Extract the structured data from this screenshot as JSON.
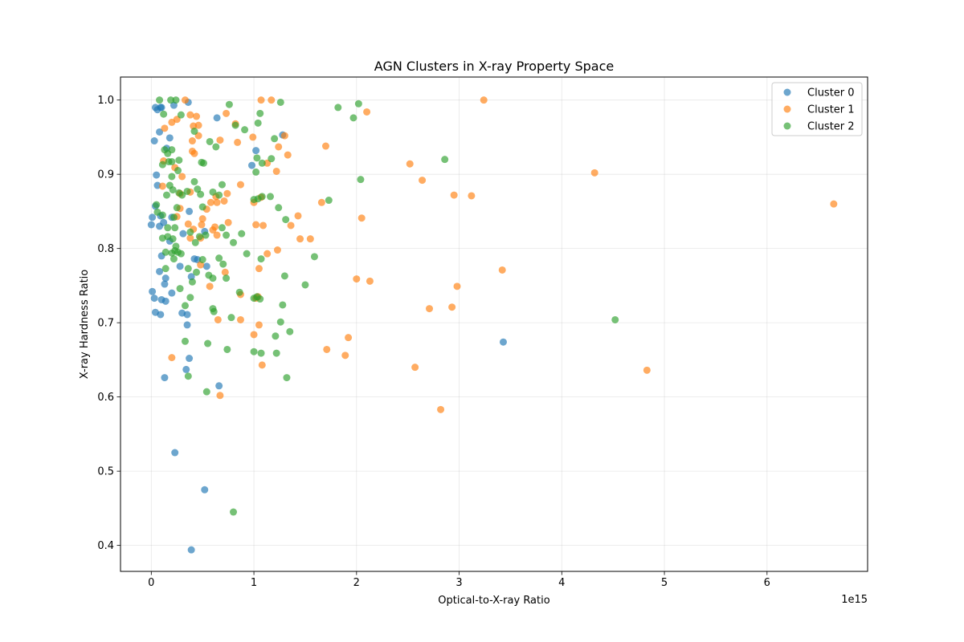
{
  "chart_data": {
    "type": "scatter",
    "title": "AGN Clusters in X-ray Property Space",
    "xlabel": "Optical-to-X-ray Ratio",
    "ylabel": "X-ray Hardness Ratio",
    "x_offset_label": "1e15",
    "x_unit_scale": 1000000000000000.0,
    "xlim": [
      -0.3,
      6.98
    ],
    "ylim": [
      0.365,
      1.031
    ],
    "xticks": [
      0,
      1,
      2,
      3,
      4,
      5,
      6
    ],
    "xtick_labels": [
      "0",
      "1",
      "2",
      "3",
      "4",
      "5",
      "6"
    ],
    "yticks": [
      0.4,
      0.5,
      0.6,
      0.7,
      0.8,
      0.9,
      1.0
    ],
    "ytick_labels": [
      "0.4",
      "0.5",
      "0.6",
      "0.7",
      "0.8",
      "0.9",
      "1.0"
    ],
    "grid": true,
    "legend_position": "upper right",
    "series": [
      {
        "name": "Cluster 0",
        "color": "#1f77b4",
        "points": [
          [
            0.04,
            0.99
          ],
          [
            0.06,
            0.987
          ],
          [
            0.09,
            0.99
          ],
          [
            0.1,
            0.99
          ],
          [
            0.22,
            0.993
          ],
          [
            0.36,
            0.997
          ],
          [
            0.64,
            0.976
          ],
          [
            0.08,
            0.957
          ],
          [
            0.18,
            0.949
          ],
          [
            0.03,
            0.945
          ],
          [
            0.15,
            0.935
          ],
          [
            0.98,
            0.912
          ],
          [
            1.02,
            0.932
          ],
          [
            1.28,
            0.953
          ],
          [
            0.05,
            0.899
          ],
          [
            0.06,
            0.885
          ],
          [
            0.04,
            0.857
          ],
          [
            0.01,
            0.842
          ],
          [
            0.09,
            0.844
          ],
          [
            0.0,
            0.832
          ],
          [
            0.08,
            0.83
          ],
          [
            0.12,
            0.835
          ],
          [
            0.2,
            0.842
          ],
          [
            0.18,
            0.81
          ],
          [
            0.37,
            0.85
          ],
          [
            0.31,
            0.82
          ],
          [
            0.52,
            0.823
          ],
          [
            0.1,
            0.79
          ],
          [
            0.08,
            0.769
          ],
          [
            0.42,
            0.786
          ],
          [
            0.45,
            0.785
          ],
          [
            0.54,
            0.776
          ],
          [
            0.28,
            0.776
          ],
          [
            0.39,
            0.762
          ],
          [
            0.14,
            0.76
          ],
          [
            0.13,
            0.752
          ],
          [
            0.2,
            0.74
          ],
          [
            0.01,
            0.742
          ],
          [
            0.03,
            0.733
          ],
          [
            0.1,
            0.731
          ],
          [
            0.14,
            0.729
          ],
          [
            0.04,
            0.714
          ],
          [
            0.09,
            0.711
          ],
          [
            0.3,
            0.713
          ],
          [
            0.35,
            0.711
          ],
          [
            0.35,
            0.697
          ],
          [
            0.37,
            0.652
          ],
          [
            0.34,
            0.637
          ],
          [
            0.13,
            0.626
          ],
          [
            0.66,
            0.615
          ],
          [
            3.43,
            0.674
          ],
          [
            0.23,
            0.525
          ],
          [
            0.52,
            0.475
          ],
          [
            0.39,
            0.394
          ]
        ]
      },
      {
        "name": "Cluster 1",
        "color": "#ff7f0e",
        "points": [
          [
            0.33,
            1.0
          ],
          [
            1.07,
            1.0
          ],
          [
            1.17,
            1.0
          ],
          [
            3.24,
            1.0
          ],
          [
            0.38,
            0.98
          ],
          [
            0.44,
            0.978
          ],
          [
            0.73,
            0.982
          ],
          [
            2.1,
            0.984
          ],
          [
            0.2,
            0.97
          ],
          [
            0.25,
            0.974
          ],
          [
            0.46,
            0.966
          ],
          [
            0.41,
            0.965
          ],
          [
            0.82,
            0.968
          ],
          [
            0.13,
            0.962
          ],
          [
            0.46,
            0.952
          ],
          [
            0.99,
            0.95
          ],
          [
            1.3,
            0.952
          ],
          [
            0.67,
            0.946
          ],
          [
            0.84,
            0.943
          ],
          [
            0.4,
            0.945
          ],
          [
            1.24,
            0.937
          ],
          [
            1.7,
            0.938
          ],
          [
            0.4,
            0.931
          ],
          [
            0.42,
            0.928
          ],
          [
            1.33,
            0.926
          ],
          [
            1.13,
            0.915
          ],
          [
            2.52,
            0.914
          ],
          [
            0.12,
            0.918
          ],
          [
            0.23,
            0.909
          ],
          [
            0.3,
            0.897
          ],
          [
            1.22,
            0.904
          ],
          [
            4.32,
            0.902
          ],
          [
            2.64,
            0.892
          ],
          [
            0.87,
            0.886
          ],
          [
            0.11,
            0.884
          ],
          [
            0.28,
            0.874
          ],
          [
            0.38,
            0.876
          ],
          [
            0.74,
            0.874
          ],
          [
            0.63,
            0.87
          ],
          [
            0.64,
            0.862
          ],
          [
            0.71,
            0.864
          ],
          [
            0.58,
            0.862
          ],
          [
            1.0,
            0.862
          ],
          [
            1.07,
            0.869
          ],
          [
            2.95,
            0.872
          ],
          [
            3.12,
            0.871
          ],
          [
            1.66,
            0.862
          ],
          [
            0.28,
            0.854
          ],
          [
            0.54,
            0.853
          ],
          [
            0.25,
            0.843
          ],
          [
            0.5,
            0.84
          ],
          [
            1.43,
            0.844
          ],
          [
            2.05,
            0.841
          ],
          [
            0.36,
            0.833
          ],
          [
            0.49,
            0.832
          ],
          [
            0.62,
            0.829
          ],
          [
            0.75,
            0.835
          ],
          [
            1.02,
            0.832
          ],
          [
            1.09,
            0.831
          ],
          [
            1.36,
            0.831
          ],
          [
            6.65,
            0.86
          ],
          [
            0.41,
            0.826
          ],
          [
            0.6,
            0.825
          ],
          [
            0.64,
            0.818
          ],
          [
            0.48,
            0.814
          ],
          [
            0.38,
            0.814
          ],
          [
            1.45,
            0.813
          ],
          [
            1.55,
            0.813
          ],
          [
            1.23,
            0.798
          ],
          [
            1.13,
            0.793
          ],
          [
            0.48,
            0.778
          ],
          [
            0.72,
            0.768
          ],
          [
            1.05,
            0.773
          ],
          [
            3.42,
            0.771
          ],
          [
            0.57,
            0.749
          ],
          [
            0.87,
            0.738
          ],
          [
            2.0,
            0.759
          ],
          [
            2.13,
            0.756
          ],
          [
            2.98,
            0.749
          ],
          [
            1.04,
            0.735
          ],
          [
            1.02,
            0.733
          ],
          [
            2.71,
            0.719
          ],
          [
            2.93,
            0.721
          ],
          [
            0.87,
            0.704
          ],
          [
            0.65,
            0.704
          ],
          [
            1.05,
            0.697
          ],
          [
            1.0,
            0.684
          ],
          [
            1.92,
            0.68
          ],
          [
            1.71,
            0.664
          ],
          [
            1.89,
            0.656
          ],
          [
            1.08,
            0.643
          ],
          [
            2.57,
            0.64
          ],
          [
            4.83,
            0.636
          ],
          [
            0.2,
            0.653
          ],
          [
            0.67,
            0.602
          ],
          [
            2.82,
            0.583
          ]
        ]
      },
      {
        "name": "Cluster 2",
        "color": "#2ca02c",
        "points": [
          [
            0.08,
            1.0
          ],
          [
            0.19,
            1.0
          ],
          [
            0.24,
            1.0
          ],
          [
            0.76,
            0.994
          ],
          [
            1.26,
            0.997
          ],
          [
            2.02,
            0.995
          ],
          [
            1.82,
            0.99
          ],
          [
            0.29,
            0.98
          ],
          [
            0.12,
            0.981
          ],
          [
            1.06,
            0.982
          ],
          [
            0.42,
            0.958
          ],
          [
            1.04,
            0.969
          ],
          [
            0.82,
            0.966
          ],
          [
            0.91,
            0.96
          ],
          [
            1.97,
            0.976
          ],
          [
            0.57,
            0.944
          ],
          [
            1.2,
            0.948
          ],
          [
            0.63,
            0.937
          ],
          [
            0.13,
            0.933
          ],
          [
            0.2,
            0.933
          ],
          [
            0.16,
            0.928
          ],
          [
            0.17,
            0.917
          ],
          [
            0.2,
            0.917
          ],
          [
            0.11,
            0.913
          ],
          [
            0.27,
            0.919
          ],
          [
            0.49,
            0.916
          ],
          [
            0.51,
            0.915
          ],
          [
            1.03,
            0.922
          ],
          [
            1.08,
            0.915
          ],
          [
            1.17,
            0.921
          ],
          [
            0.26,
            0.905
          ],
          [
            0.2,
            0.897
          ],
          [
            0.42,
            0.89
          ],
          [
            1.02,
            0.903
          ],
          [
            2.04,
            0.893
          ],
          [
            2.86,
            0.92
          ],
          [
            0.18,
            0.885
          ],
          [
            0.21,
            0.879
          ],
          [
            0.35,
            0.877
          ],
          [
            0.45,
            0.88
          ],
          [
            0.69,
            0.886
          ],
          [
            0.66,
            0.872
          ],
          [
            0.6,
            0.876
          ],
          [
            0.27,
            0.875
          ],
          [
            0.3,
            0.872
          ],
          [
            0.48,
            0.873
          ],
          [
            0.15,
            0.872
          ],
          [
            1.0,
            0.866
          ],
          [
            1.04,
            0.867
          ],
          [
            1.08,
            0.87
          ],
          [
            1.16,
            0.87
          ],
          [
            1.73,
            0.865
          ],
          [
            0.25,
            0.855
          ],
          [
            0.05,
            0.859
          ],
          [
            0.5,
            0.856
          ],
          [
            1.24,
            0.855
          ],
          [
            0.06,
            0.849
          ],
          [
            0.11,
            0.845
          ],
          [
            0.22,
            0.842
          ],
          [
            0.69,
            0.828
          ],
          [
            0.38,
            0.822
          ],
          [
            0.16,
            0.828
          ],
          [
            0.23,
            0.828
          ],
          [
            1.31,
            0.839
          ],
          [
            0.11,
            0.814
          ],
          [
            0.21,
            0.813
          ],
          [
            0.16,
            0.816
          ],
          [
            0.24,
            0.803
          ],
          [
            0.43,
            0.808
          ],
          [
            0.47,
            0.816
          ],
          [
            0.53,
            0.818
          ],
          [
            0.73,
            0.818
          ],
          [
            0.8,
            0.808
          ],
          [
            0.88,
            0.82
          ],
          [
            0.14,
            0.795
          ],
          [
            0.2,
            0.794
          ],
          [
            0.23,
            0.797
          ],
          [
            0.26,
            0.795
          ],
          [
            0.29,
            0.793
          ],
          [
            0.22,
            0.786
          ],
          [
            0.5,
            0.785
          ],
          [
            0.66,
            0.787
          ],
          [
            0.93,
            0.793
          ],
          [
            1.07,
            0.786
          ],
          [
            1.59,
            0.789
          ],
          [
            0.14,
            0.773
          ],
          [
            0.36,
            0.773
          ],
          [
            0.7,
            0.779
          ],
          [
            0.44,
            0.768
          ],
          [
            0.4,
            0.755
          ],
          [
            0.56,
            0.764
          ],
          [
            0.6,
            0.76
          ],
          [
            0.73,
            0.76
          ],
          [
            1.3,
            0.763
          ],
          [
            1.5,
            0.751
          ],
          [
            0.28,
            0.746
          ],
          [
            0.86,
            0.741
          ],
          [
            1.0,
            0.733
          ],
          [
            1.03,
            0.735
          ],
          [
            1.06,
            0.732
          ],
          [
            0.38,
            0.734
          ],
          [
            0.33,
            0.723
          ],
          [
            1.28,
            0.724
          ],
          [
            0.6,
            0.719
          ],
          [
            0.61,
            0.715
          ],
          [
            0.78,
            0.707
          ],
          [
            1.26,
            0.701
          ],
          [
            4.52,
            0.704
          ],
          [
            1.35,
            0.688
          ],
          [
            1.21,
            0.682
          ],
          [
            0.33,
            0.675
          ],
          [
            0.55,
            0.672
          ],
          [
            0.74,
            0.664
          ],
          [
            1.0,
            0.661
          ],
          [
            1.07,
            0.659
          ],
          [
            1.22,
            0.659
          ],
          [
            0.36,
            0.628
          ],
          [
            1.32,
            0.626
          ],
          [
            0.54,
            0.607
          ],
          [
            0.8,
            0.445
          ]
        ]
      }
    ]
  }
}
